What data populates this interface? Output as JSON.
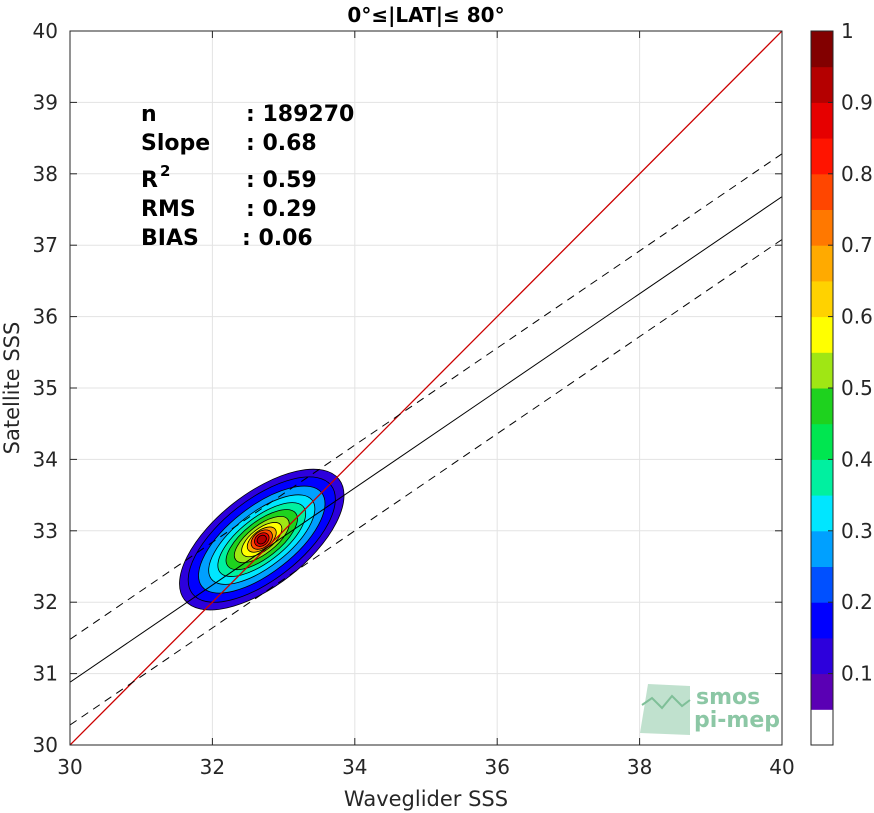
{
  "chart_data": {
    "type": "contour-density-scatter",
    "title": "0°≤|LAT|≤ 80°",
    "xlabel": "Waveglider SSS",
    "ylabel": "Satellite SSS",
    "xlim": [
      30,
      40
    ],
    "ylim": [
      30,
      40
    ],
    "xticks": [
      "30",
      "32",
      "34",
      "36",
      "38",
      "40"
    ],
    "yticks": [
      "30",
      "31",
      "32",
      "33",
      "34",
      "35",
      "36",
      "37",
      "38",
      "39",
      "40"
    ],
    "grid": true,
    "stats": {
      "n_label": "n",
      "n_value": ": 189270",
      "slope_label": "Slope",
      "slope_value": ": 0.68",
      "r2_label": "R",
      "r2_sup": "2",
      "r2_value": ": 0.59",
      "rms_label": "RMS",
      "rms_value": ": 0.29",
      "bias_label": "BIAS",
      "bias_value": ": 0.06"
    },
    "identity_line": {
      "slope": 1,
      "intercept": 0,
      "color": "#cc0000"
    },
    "fit_line": {
      "slope": 0.68,
      "intercept": 10.48,
      "color": "#000000"
    },
    "fit_band": {
      "offset": 0.6,
      "style": "dashed"
    },
    "density_center": [
      32.75,
      32.85
    ],
    "contour_levels": [
      0.1,
      0.2,
      0.3,
      0.4,
      0.5,
      0.6,
      0.7,
      0.8,
      0.9,
      1.0
    ],
    "colorbar": {
      "ticks": [
        "0.1",
        "0.2",
        "0.3",
        "0.4",
        "0.5",
        "0.6",
        "0.7",
        "0.8",
        "0.9",
        "1"
      ],
      "colors": [
        "#ffffff",
        "#5a00b4",
        "#2d00dc",
        "#0000ff",
        "#0050ff",
        "#00a0ff",
        "#00e6ff",
        "#00f0a0",
        "#00e650",
        "#1ed21e",
        "#a0e614",
        "#ffff00",
        "#ffd200",
        "#ffaa00",
        "#ff7800",
        "#ff4600",
        "#ff1400",
        "#e60000",
        "#b40000",
        "#820000"
      ]
    },
    "watermark": {
      "line1": "smos",
      "line2": "pi-mep"
    }
  }
}
